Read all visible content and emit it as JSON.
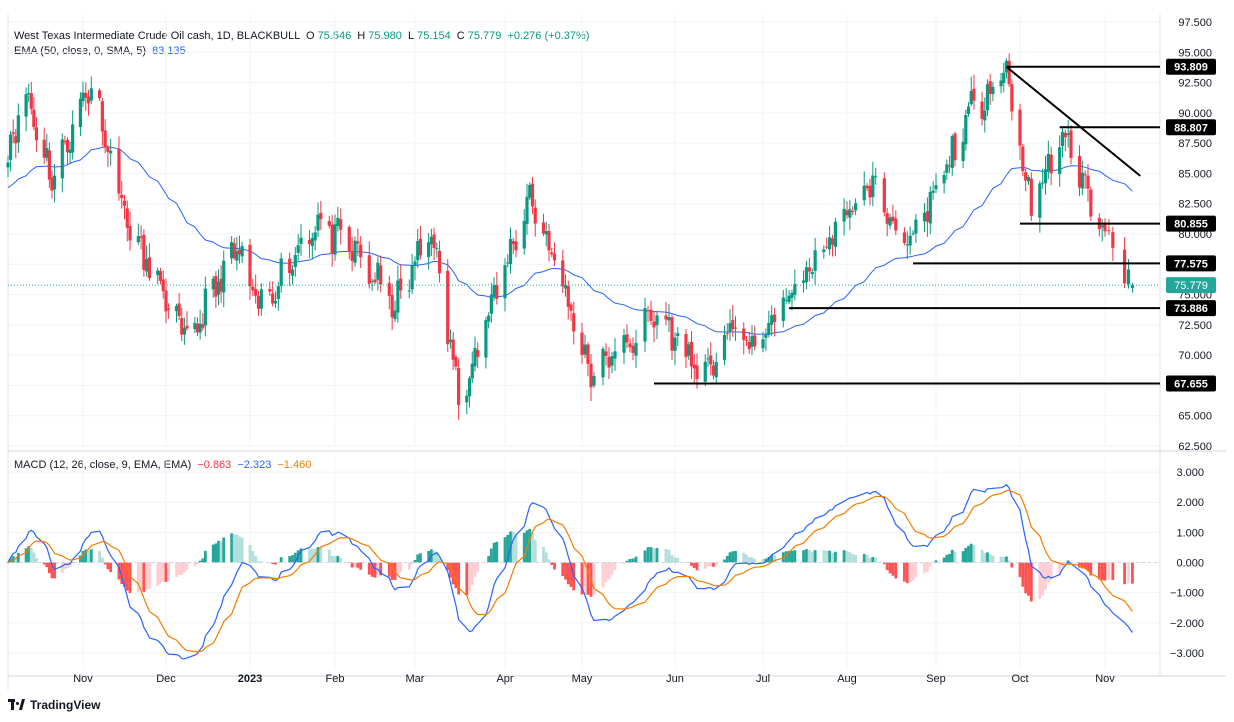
{
  "header": {
    "symbol_title": "West Texas Intermediate Crude Oil cash, 1D, BLACKBULL",
    "o_label": "O",
    "o_value": "75.546",
    "h_label": "H",
    "h_value": "75.980",
    "l_label": "L",
    "l_value": "75.154",
    "c_label": "C",
    "c_value": "75.779",
    "change": "+0.276 (+0.37%)",
    "ema_label": "EMA (50, close, 0, SMA, 5)",
    "ema_value": "83.135",
    "macd_label": "MACD (12, 26, close, 9, EMA, EMA)",
    "macd_hist_value": "−0.863",
    "macd_line_value": "−2.323",
    "macd_signal_value": "−1.460"
  },
  "brand": "TradingView",
  "colors": {
    "up": "#089981",
    "down": "#f23645",
    "ema": "#2962ff",
    "macd": "#2962ff",
    "signal": "#f57c00",
    "grid": "#f0f3fa",
    "hist_up_strong": "#26a69a",
    "hist_up_weak": "#b2dfdb",
    "hist_down_strong": "#ff5252",
    "hist_down_weak": "#ffcdd2"
  },
  "chart_data": [
    {
      "type": "candlestick",
      "title": "West Texas Intermediate Crude Oil cash, 1D, BLACKBULL",
      "ylim": [
        62.5,
        97.5
      ],
      "yticks": [
        "97.500",
        "95.000",
        "92.500",
        "90.000",
        "87.500",
        "85.000",
        "82.500",
        "80.000",
        "77.500",
        "75.000",
        "72.500",
        "70.000",
        "67.500",
        "65.000",
        "62.500"
      ],
      "xtick_labels": [
        "Nov",
        "Dec",
        "2023",
        "Feb",
        "Mar",
        "Apr",
        "May",
        "Jun",
        "Jul",
        "Aug",
        "Sep",
        "Oct",
        "Nov"
      ],
      "anchors": [
        {
          "date": "Oct 3 2022",
          "close": 87.0
        },
        {
          "date": "Oct 10",
          "close": 91.6
        },
        {
          "date": "Oct 20",
          "close": 84.5
        },
        {
          "date": "Nov 4",
          "close": 92.6
        },
        {
          "date": "Nov 18",
          "close": 80.2
        },
        {
          "date": "Dec 9",
          "close": 71.0
        },
        {
          "date": "Dec 28",
          "close": 78.8
        },
        {
          "date": "Jan 5 2023",
          "close": 73.7
        },
        {
          "date": "Jan 25",
          "close": 81.0
        },
        {
          "date": "Feb 8",
          "close": 78.5
        },
        {
          "date": "Feb 22",
          "close": 74.0
        },
        {
          "date": "Mar 7",
          "close": 80.5
        },
        {
          "date": "Mar 17",
          "close": 66.5
        },
        {
          "date": "Mar 29",
          "close": 74.0
        },
        {
          "date": "Apr 12",
          "close": 83.2
        },
        {
          "date": "Apr 21",
          "close": 77.8
        },
        {
          "date": "May 4",
          "close": 68.6
        },
        {
          "date": "May 12",
          "close": 70.0
        },
        {
          "date": "May 26",
          "close": 73.4
        },
        {
          "date": "Jun 12",
          "close": 68.0
        },
        {
          "date": "Jun 21",
          "close": 72.2
        },
        {
          "date": "Jun 30",
          "close": 70.6
        },
        {
          "date": "Jul 14",
          "close": 75.5
        },
        {
          "date": "Aug 9",
          "close": 84.2
        },
        {
          "date": "Aug 23",
          "close": 78.8
        },
        {
          "date": "Sep 14",
          "close": 90.2
        },
        {
          "date": "Sep 27",
          "close": 93.7
        },
        {
          "date": "Oct 6",
          "close": 82.2
        },
        {
          "date": "Oct 17",
          "close": 88.3
        },
        {
          "date": "Oct 25",
          "close": 84.0
        },
        {
          "date": "Nov 1",
          "close": 80.5
        },
        {
          "date": "Nov 8",
          "close": 75.779
        }
      ],
      "series": [
        {
          "name": "EMA (50, close, 0, SMA, 5)",
          "last_value": 83.135
        }
      ],
      "horizontal_levels": [
        93.809,
        88.807,
        80.855,
        77.575,
        73.886,
        67.655
      ],
      "current_price": 75.779,
      "trend_line": {
        "from": {
          "date": "Sep 27",
          "price": 93.8
        },
        "to": {
          "date": "Nov 10",
          "price": 84.8
        }
      }
    },
    {
      "type": "histogram+line",
      "title": "MACD (12, 26, close, 9, EMA, EMA)",
      "ylim": [
        -3.5,
        3.5
      ],
      "yticks": [
        "3.000",
        "2.000",
        "1.000",
        "0.000",
        "−1.000",
        "−2.000",
        "−3.000"
      ],
      "series": [
        {
          "name": "Histogram",
          "last_value": -0.863
        },
        {
          "name": "MACD",
          "last_value": -2.323
        },
        {
          "name": "Signal",
          "last_value": -1.46
        }
      ]
    }
  ]
}
